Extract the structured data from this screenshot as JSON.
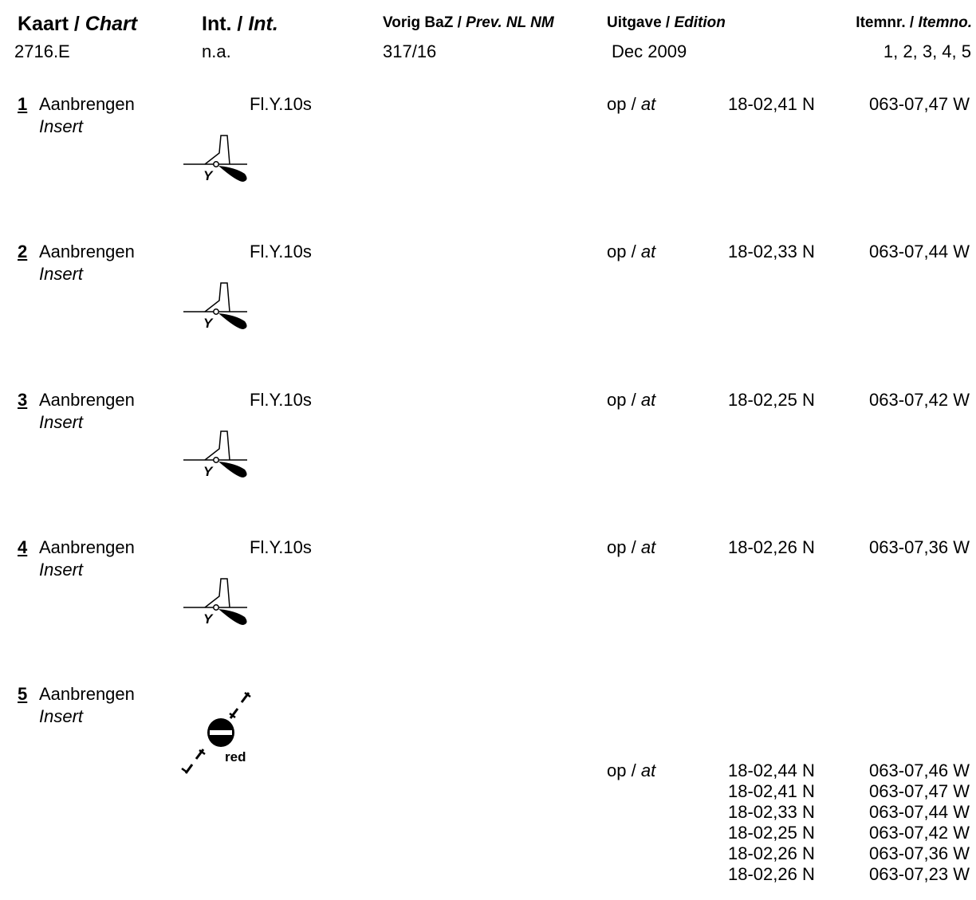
{
  "header": {
    "chart": {
      "nl": "Kaart /",
      "en": "Chart",
      "value": "2716.E"
    },
    "int": {
      "nl": "Int. /",
      "en": "Int.",
      "value": "n.a."
    },
    "prev": {
      "nl": "Vorig BaZ /",
      "en": "Prev. NL NM",
      "value": "317/16"
    },
    "edition": {
      "nl": "Uitgave /",
      "en": "Edition",
      "value": "Dec 2009"
    },
    "itemno": {
      "nl": "Itemnr. /",
      "en": "Itemno.",
      "value": "1, 2, 3, 4, 5"
    }
  },
  "items": [
    {
      "num": "1",
      "action_nl": "Aanbrengen",
      "action_en": "Insert",
      "light": "Fl.Y.10s",
      "buoy_letter": "Y",
      "op": "op /",
      "at": "at",
      "lat": "18-02,41 N",
      "lon": "063-07,47 W"
    },
    {
      "num": "2",
      "action_nl": "Aanbrengen",
      "action_en": "Insert",
      "light": "Fl.Y.10s",
      "buoy_letter": "Y",
      "op": "op /",
      "at": "at",
      "lat": "18-02,33 N",
      "lon": "063-07,44 W"
    },
    {
      "num": "3",
      "action_nl": "Aanbrengen",
      "action_en": "Insert",
      "light": "Fl.Y.10s",
      "buoy_letter": "Y",
      "op": "op /",
      "at": "at",
      "lat": "18-02,25 N",
      "lon": "063-07,42 W"
    },
    {
      "num": "4",
      "action_nl": "Aanbrengen",
      "action_en": "Insert",
      "light": "Fl.Y.10s",
      "buoy_letter": "Y",
      "op": "op /",
      "at": "at",
      "lat": "18-02,26 N",
      "lon": "063-07,36 W"
    }
  ],
  "item5": {
    "num": "5",
    "action_nl": "Aanbrengen",
    "action_en": "Insert",
    "symbol_label": "red",
    "op": "op /",
    "at": "at",
    "coords": [
      {
        "lat": "18-02,44 N",
        "lon": "063-07,46 W"
      },
      {
        "lat": "18-02,41 N",
        "lon": "063-07,47 W"
      },
      {
        "lat": "18-02,33 N",
        "lon": "063-07,44 W"
      },
      {
        "lat": "18-02,25 N",
        "lon": "063-07,42 W"
      },
      {
        "lat": "18-02,26 N",
        "lon": "063-07,36 W"
      },
      {
        "lat": "18-02,26 N",
        "lon": "063-07,23 W"
      }
    ]
  }
}
